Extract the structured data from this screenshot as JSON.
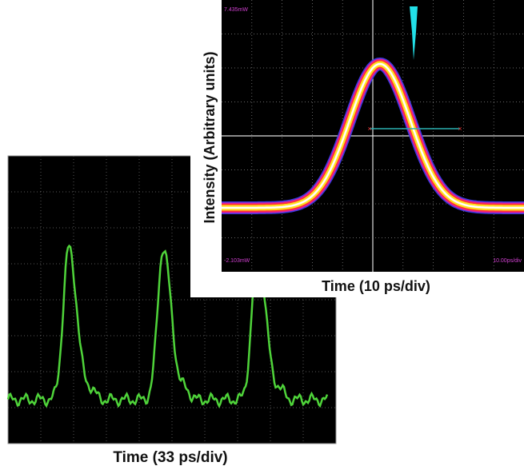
{
  "back_panel": {
    "caption": "Time (33 ps/div)"
  },
  "front_panel": {
    "y_label": "Intensity (Arbitrary units)",
    "caption": "Time (10 ps/div)",
    "scope_top_label": "7.435mW",
    "scope_bottom_label": "-2.103mW",
    "scope_timebase": "10.00ps/div"
  }
}
